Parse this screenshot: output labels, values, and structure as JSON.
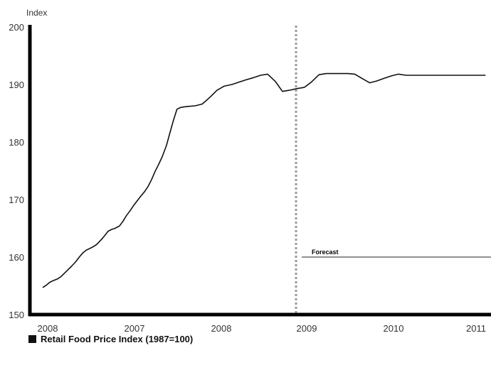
{
  "chart_data": {
    "type": "line",
    "ylabel": "Index",
    "ylim": [
      150,
      200
    ],
    "yticks": [
      150,
      160,
      170,
      180,
      190,
      200
    ],
    "x_tick_labels": [
      "2008",
      "2007",
      "2008",
      "2009",
      "2010",
      "2011"
    ],
    "forecast_label": "Forecast",
    "forecast_line_value": 160,
    "grid": false,
    "legend": {
      "placement": "bottom-left",
      "label": "Retail Food Price Index (1987=100)"
    },
    "series": [
      {
        "name": "Retail Food Price Index (1987=100)",
        "color": "#111111",
        "x": [
          0.0,
          0.04,
          0.08,
          0.12,
          0.17,
          0.21,
          0.25,
          0.33,
          0.38,
          0.42,
          0.46,
          0.5,
          0.54,
          0.58,
          0.62,
          0.67,
          0.71,
          0.75,
          0.79,
          0.83,
          0.88,
          0.92,
          0.96,
          1.0,
          1.04,
          1.12,
          1.17,
          1.21,
          1.25,
          1.29,
          1.33,
          1.37,
          1.42,
          1.46,
          1.5,
          1.54,
          1.58,
          1.62,
          1.67,
          1.75,
          1.83,
          1.92,
          2.0,
          2.08,
          2.17,
          2.25,
          2.33,
          2.42,
          2.5,
          2.58,
          2.67,
          2.75,
          2.83,
          2.92,
          3.0,
          3.08,
          3.17,
          3.25,
          3.33,
          3.42,
          3.5,
          3.58,
          3.67,
          3.75,
          3.83,
          3.92,
          4.0,
          4.08,
          4.17,
          4.25,
          4.33,
          4.42,
          4.5,
          4.58,
          4.67,
          4.75,
          4.83,
          4.92,
          5.0,
          5.08
        ],
        "values": [
          154.7,
          155.1,
          155.6,
          155.9,
          156.2,
          156.6,
          157.2,
          158.4,
          159.2,
          160.0,
          160.7,
          161.2,
          161.5,
          161.8,
          162.2,
          163.0,
          163.7,
          164.5,
          164.8,
          165.0,
          165.4,
          166.2,
          167.2,
          168.0,
          168.9,
          170.5,
          171.4,
          172.3,
          173.5,
          174.9,
          176.1,
          177.4,
          179.4,
          181.6,
          183.8,
          185.7,
          186.0,
          186.1,
          186.2,
          186.3,
          186.6,
          187.8,
          189.0,
          189.7,
          190.0,
          190.4,
          190.8,
          191.2,
          191.6,
          191.8,
          190.5,
          188.8,
          189.0,
          189.3,
          189.5,
          190.4,
          191.7,
          191.9,
          191.9,
          191.9,
          191.9,
          191.8,
          191.0,
          190.3,
          190.6,
          191.1,
          191.5,
          191.8,
          191.6,
          191.6,
          191.6,
          191.6,
          191.6,
          191.6,
          191.6,
          191.6,
          191.6,
          191.6,
          191.6,
          191.6
        ]
      }
    ]
  }
}
